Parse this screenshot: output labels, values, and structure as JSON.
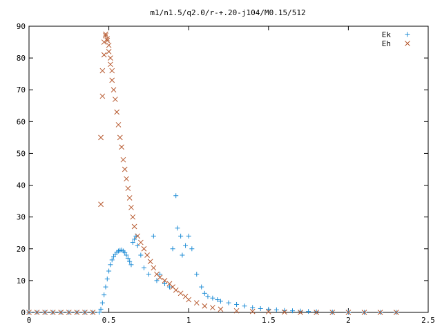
{
  "chart_data": {
    "type": "scatter",
    "title": "m1/n1.5/q2.0/r-+.20-j104/M0.15/512",
    "xlabel": "",
    "ylabel": "",
    "xlim": [
      0,
      2.5
    ],
    "ylim": [
      0,
      90
    ],
    "x_ticks": [
      "0",
      "0.5",
      "1",
      "1.5",
      "2",
      "2.5"
    ],
    "y_ticks": [
      "0",
      "10",
      "20",
      "30",
      "40",
      "50",
      "60",
      "70",
      "80",
      "90"
    ],
    "grid": false,
    "legend_position": "top-right",
    "series": [
      {
        "name": "Ek",
        "marker": "plus",
        "color": "#1f8dd6",
        "points": [
          [
            0.0,
            0.0
          ],
          [
            0.05,
            0.0
          ],
          [
            0.1,
            0.0
          ],
          [
            0.15,
            0.0
          ],
          [
            0.2,
            0.0
          ],
          [
            0.25,
            0.0
          ],
          [
            0.3,
            0.0
          ],
          [
            0.35,
            0.0
          ],
          [
            0.4,
            0.0
          ],
          [
            0.44,
            0.0
          ],
          [
            0.45,
            1.0
          ],
          [
            0.46,
            3.0
          ],
          [
            0.47,
            5.5
          ],
          [
            0.48,
            8.0
          ],
          [
            0.49,
            10.5
          ],
          [
            0.5,
            13.0
          ],
          [
            0.51,
            15.0
          ],
          [
            0.52,
            16.5
          ],
          [
            0.53,
            17.5
          ],
          [
            0.54,
            18.3
          ],
          [
            0.55,
            18.9
          ],
          [
            0.56,
            19.3
          ],
          [
            0.57,
            19.5
          ],
          [
            0.58,
            19.6
          ],
          [
            0.59,
            19.3
          ],
          [
            0.6,
            18.8
          ],
          [
            0.61,
            18.0
          ],
          [
            0.62,
            17.0
          ],
          [
            0.63,
            16.0
          ],
          [
            0.64,
            15.0
          ],
          [
            0.65,
            22.0
          ],
          [
            0.66,
            23.0
          ],
          [
            0.67,
            24.0
          ],
          [
            0.68,
            21.0
          ],
          [
            0.7,
            18.0
          ],
          [
            0.72,
            14.0
          ],
          [
            0.75,
            12.0
          ],
          [
            0.78,
            24.0
          ],
          [
            0.8,
            10.0
          ],
          [
            0.82,
            12.0
          ],
          [
            0.85,
            9.0
          ],
          [
            0.88,
            8.0
          ],
          [
            0.9,
            20.0
          ],
          [
            0.92,
            36.7
          ],
          [
            0.93,
            26.5
          ],
          [
            0.95,
            24.0
          ],
          [
            0.96,
            18.0
          ],
          [
            0.98,
            21.0
          ],
          [
            1.0,
            24.0
          ],
          [
            1.02,
            20.0
          ],
          [
            1.05,
            12.0
          ],
          [
            1.08,
            8.0
          ],
          [
            1.1,
            6.0
          ],
          [
            1.12,
            5.0
          ],
          [
            1.15,
            4.5
          ],
          [
            1.18,
            4.0
          ],
          [
            1.2,
            3.5
          ],
          [
            1.25,
            3.0
          ],
          [
            1.3,
            2.5
          ],
          [
            1.35,
            2.0
          ],
          [
            1.4,
            1.5
          ],
          [
            1.45,
            1.2
          ],
          [
            1.5,
            1.0
          ],
          [
            1.55,
            0.8
          ],
          [
            1.6,
            0.6
          ],
          [
            1.65,
            0.5
          ],
          [
            1.7,
            0.4
          ],
          [
            1.75,
            0.3
          ],
          [
            1.8,
            0.2
          ],
          [
            1.9,
            0.1
          ],
          [
            2.0,
            0.0
          ],
          [
            2.1,
            0.0
          ],
          [
            2.2,
            0.0
          ],
          [
            2.3,
            0.0
          ]
        ]
      },
      {
        "name": "Eh",
        "marker": "cross",
        "color": "#b5562b",
        "points": [
          [
            0.0,
            0.0
          ],
          [
            0.05,
            0.0
          ],
          [
            0.1,
            0.0
          ],
          [
            0.15,
            0.0
          ],
          [
            0.2,
            0.0
          ],
          [
            0.25,
            0.0
          ],
          [
            0.3,
            0.0
          ],
          [
            0.35,
            0.0
          ],
          [
            0.4,
            0.0
          ],
          [
            0.45,
            34.0
          ],
          [
            0.45,
            55.0
          ],
          [
            0.46,
            68.0
          ],
          [
            0.46,
            76.0
          ],
          [
            0.47,
            81.0
          ],
          [
            0.47,
            85.0
          ],
          [
            0.48,
            87.5
          ],
          [
            0.48,
            87.0
          ],
          [
            0.49,
            86.0
          ],
          [
            0.49,
            85.5
          ],
          [
            0.5,
            84.0
          ],
          [
            0.5,
            82.0
          ],
          [
            0.51,
            80.0
          ],
          [
            0.51,
            78.0
          ],
          [
            0.52,
            76.0
          ],
          [
            0.52,
            73.0
          ],
          [
            0.53,
            70.0
          ],
          [
            0.54,
            67.0
          ],
          [
            0.55,
            63.0
          ],
          [
            0.56,
            59.0
          ],
          [
            0.57,
            55.0
          ],
          [
            0.58,
            52.0
          ],
          [
            0.59,
            48.0
          ],
          [
            0.6,
            45.0
          ],
          [
            0.61,
            42.0
          ],
          [
            0.62,
            39.0
          ],
          [
            0.63,
            36.0
          ],
          [
            0.64,
            33.0
          ],
          [
            0.65,
            30.0
          ],
          [
            0.66,
            27.0
          ],
          [
            0.68,
            24.0
          ],
          [
            0.7,
            22.0
          ],
          [
            0.72,
            20.0
          ],
          [
            0.74,
            18.0
          ],
          [
            0.76,
            16.0
          ],
          [
            0.78,
            14.0
          ],
          [
            0.8,
            12.0
          ],
          [
            0.82,
            11.0
          ],
          [
            0.85,
            10.0
          ],
          [
            0.88,
            9.0
          ],
          [
            0.9,
            8.0
          ],
          [
            0.92,
            7.0
          ],
          [
            0.95,
            6.0
          ],
          [
            0.98,
            5.0
          ],
          [
            1.0,
            4.0
          ],
          [
            1.05,
            3.0
          ],
          [
            1.1,
            2.0
          ],
          [
            1.15,
            1.5
          ],
          [
            1.2,
            1.0
          ],
          [
            1.3,
            0.5
          ],
          [
            1.4,
            0.3
          ],
          [
            1.5,
            0.2
          ],
          [
            1.6,
            0.1
          ],
          [
            1.7,
            0.0
          ],
          [
            1.8,
            0.0
          ],
          [
            1.9,
            0.0
          ],
          [
            2.0,
            0.0
          ],
          [
            2.1,
            0.0
          ],
          [
            2.2,
            0.0
          ],
          [
            2.3,
            0.0
          ]
        ]
      }
    ]
  }
}
